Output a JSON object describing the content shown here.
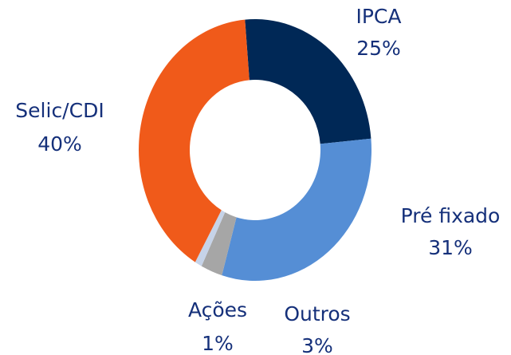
{
  "chart_data": {
    "type": "donut",
    "categories": [
      "IPCA",
      "Pré fixado",
      "Outros",
      "Ações",
      "Selic/CDI"
    ],
    "values": [
      25,
      31,
      3,
      1,
      40
    ],
    "value_labels": [
      "25%",
      "31%",
      "3%",
      "1%",
      "40%"
    ],
    "colors": [
      "#002856",
      "#558ed5",
      "#a6a6a6",
      "#c6d3e8",
      "#f05a1a"
    ]
  }
}
